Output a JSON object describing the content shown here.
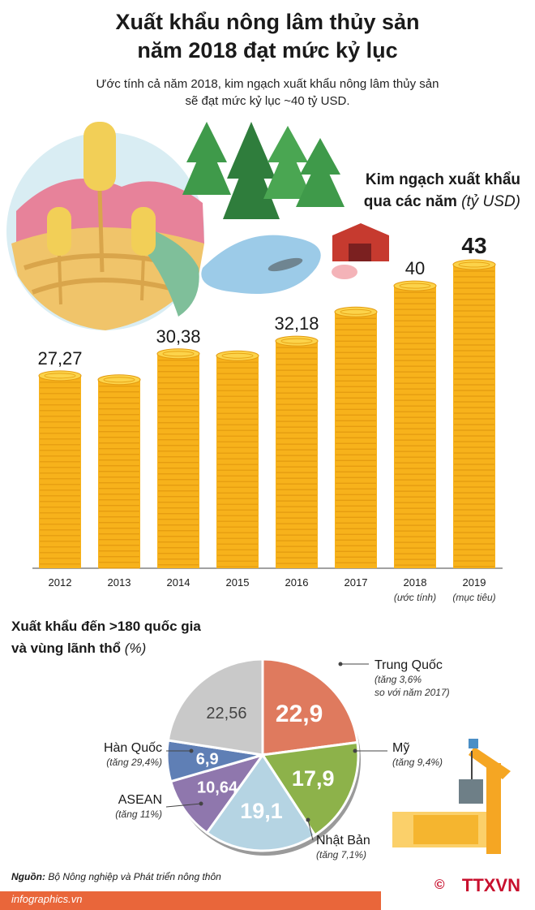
{
  "header": {
    "title_line1": "Xuất khẩu nông lâm thủy sản",
    "title_line2": "năm 2018 đạt mức kỷ lục",
    "subtitle_line1": "Ước tính cả năm 2018, kim ngạch xuất khẩu nông lâm thủy sản",
    "subtitle_line2": "sẽ đạt mức kỷ lục ~40 tỷ USD."
  },
  "bar_heading": {
    "line1": "Kim ngạch xuất khẩu",
    "line2": "qua các năm",
    "unit": "(tỷ USD)"
  },
  "pie_heading": {
    "line1": "Xuất khẩu đến >180 quốc gia",
    "line2": "và vùng lãnh thổ",
    "unit": "(%)"
  },
  "chart_data": [
    {
      "type": "bar",
      "categories": [
        "2012",
        "2013",
        "2014",
        "2015",
        "2016",
        "2017",
        "2018",
        "2019"
      ],
      "category_notes": [
        "",
        "",
        "",
        "",
        "",
        "",
        "(ước tính)",
        "(mục tiêu)"
      ],
      "values": [
        27.27,
        26.7,
        30.38,
        30.1,
        32.18,
        36.3,
        40,
        43
      ],
      "data_labels": [
        "27,27",
        "",
        "30,38",
        "",
        "32,18",
        "",
        "40",
        "43"
      ],
      "ylim": [
        0,
        45
      ],
      "color": "#f7b21b"
    },
    {
      "type": "pie",
      "slices": [
        {
          "label": "Trung Quốc",
          "note1": "(tăng 3,6%",
          "note2": "so với năm 2017)",
          "value": 22.9,
          "value_label": "22,9",
          "color": "#df7a5e"
        },
        {
          "label": "Mỹ",
          "note1": "(tăng 9,4%)",
          "note2": "",
          "value": 17.9,
          "value_label": "17,9",
          "color": "#8db24a"
        },
        {
          "label": "Nhật Bản",
          "note1": "(tăng 7,1%)",
          "note2": "",
          "value": 19.1,
          "value_label": "19,1",
          "color": "#b5d4e3"
        },
        {
          "label": "ASEAN",
          "note1": "(tăng 11%)",
          "note2": "",
          "value": 10.64,
          "value_label": "10,64",
          "color": "#8f77ad"
        },
        {
          "label": "Hàn Quốc",
          "note1": "(tăng 29,4%)",
          "note2": "",
          "value": 6.9,
          "value_label": "6,9",
          "color": "#5f7fb5"
        },
        {
          "label": "",
          "note1": "",
          "note2": "",
          "value": 22.56,
          "value_label": "22,56",
          "color": "#c9c9c9"
        }
      ]
    }
  ],
  "footer": {
    "source_label": "Nguồn:",
    "source_text": "Bộ Nông nghiệp và Phát triển nông thôn",
    "site": "infographics.vn",
    "copyright": "©",
    "agency": "TTXVN"
  }
}
